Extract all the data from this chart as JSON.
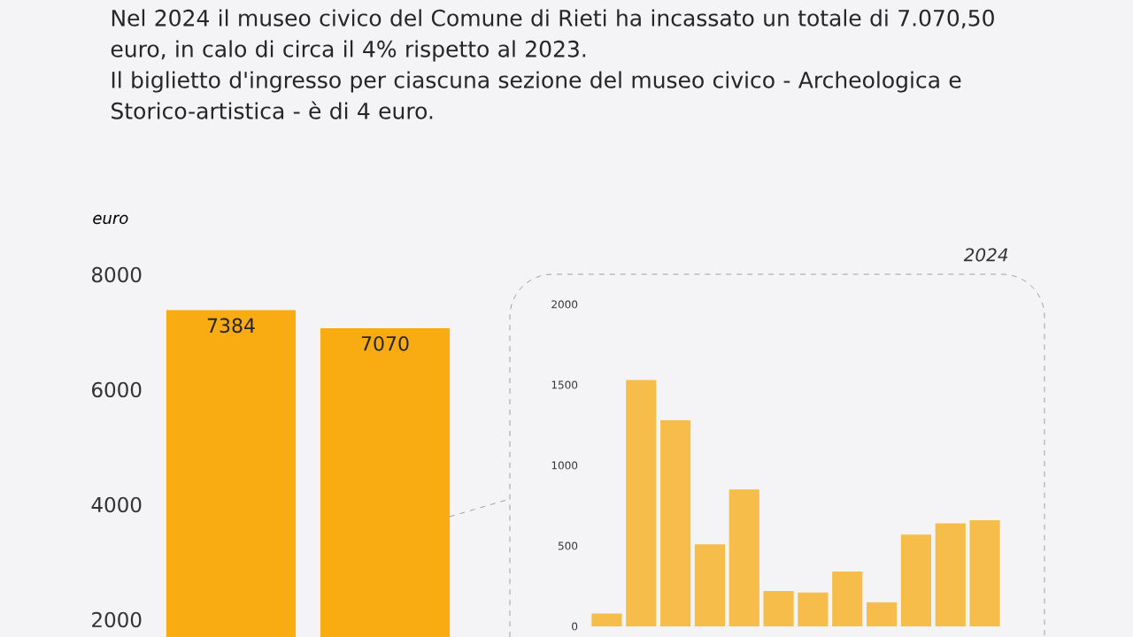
{
  "chart_data": [
    {
      "type": "bar",
      "title": "Nel 2024 il museo civico del Comune di Rieti ha incassato un totale di 7.070,50 euro, in calo di circa il 4% rispetto al 2023.",
      "subtitle": "Il biglietto d'ingresso per ciascuna sezione del museo civico - Archeologica e Storico-artistica - è di 4 euro.",
      "ylabel": "euro",
      "categories": [
        null,
        null
      ],
      "values": [
        7384,
        7070
      ],
      "color": "#f9ab12",
      "data_labels": true,
      "ylim": [
        1700,
        8000
      ],
      "yticks": [
        2000,
        4000,
        6000,
        8000
      ]
    },
    {
      "type": "bar",
      "title": "2024",
      "categories": [
        null,
        null,
        null,
        null,
        null,
        null,
        null,
        null,
        null,
        null,
        null,
        null
      ],
      "values": [
        80,
        1530,
        1280,
        510,
        850,
        220,
        210,
        340,
        150,
        570,
        640,
        660
      ],
      "color": "#f6bd4a",
      "ylim": [
        0,
        2000
      ],
      "yticks": [
        0,
        500,
        1000,
        1500,
        2000
      ]
    }
  ]
}
